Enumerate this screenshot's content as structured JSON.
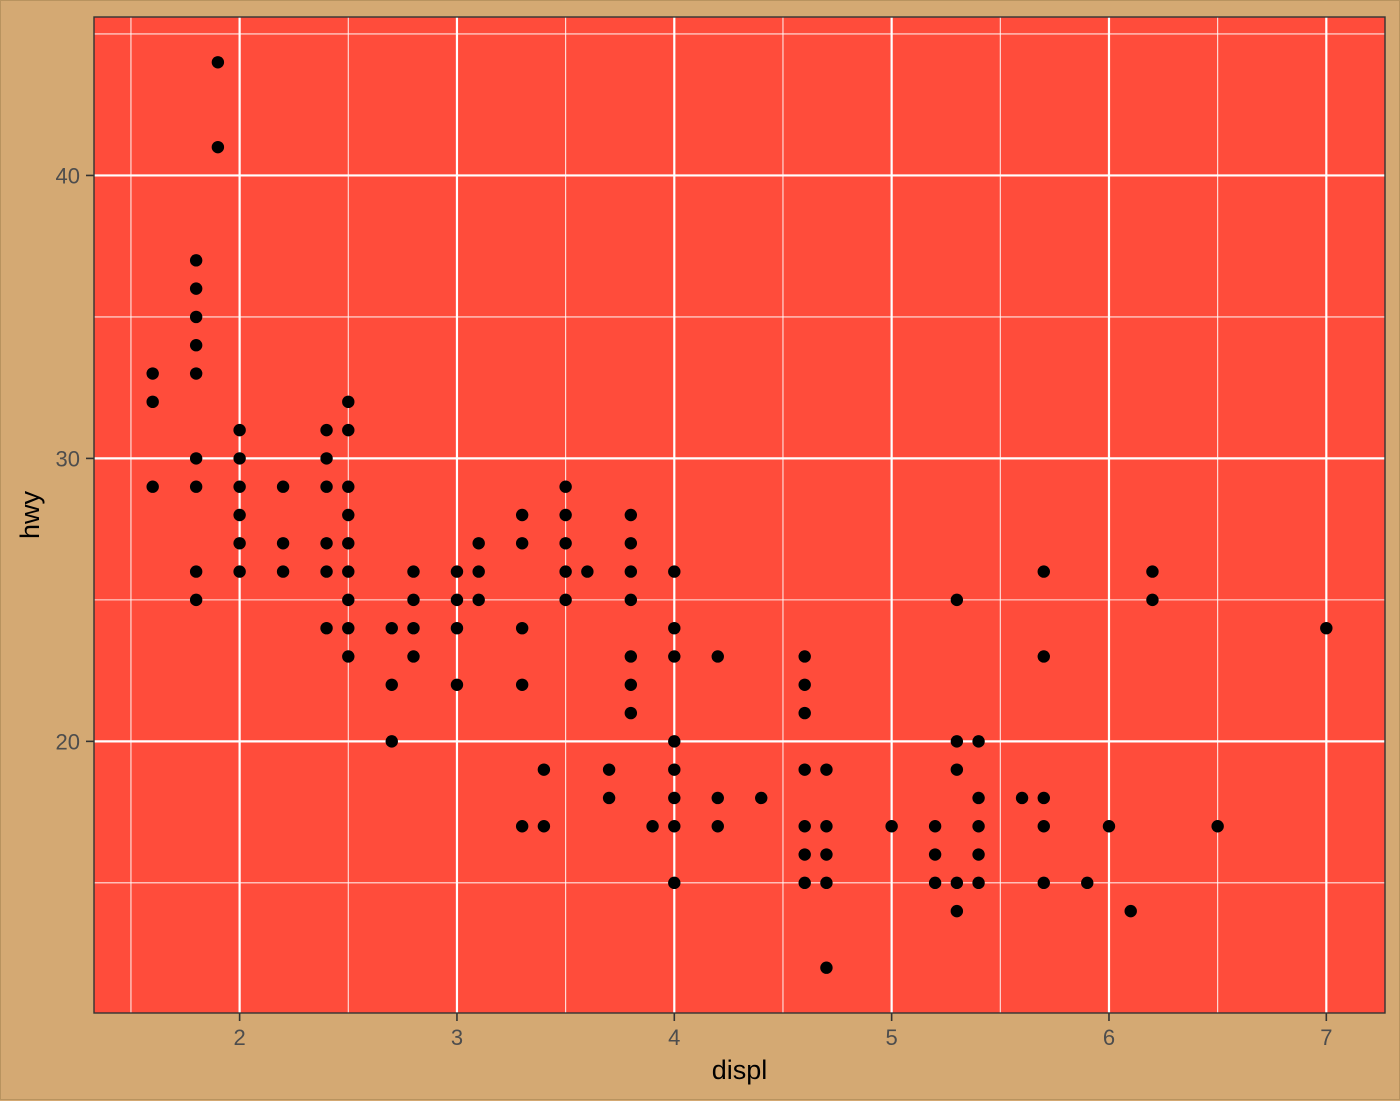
{
  "chart_data": {
    "type": "scatter",
    "title": "",
    "xlabel": "displ",
    "ylabel": "hwy",
    "xlim": [
      1.33,
      7.27
    ],
    "ylim": [
      10.4,
      45.6
    ],
    "x_ticks": [
      2,
      3,
      4,
      5,
      6,
      7
    ],
    "y_ticks": [
      20,
      30,
      40
    ],
    "x_tick_labels": [
      "2",
      "3",
      "4",
      "5",
      "6",
      "7"
    ],
    "y_tick_labels": [
      "20",
      "30",
      "40"
    ],
    "grid": true,
    "colors": {
      "background": "#d4a973",
      "panel": "#ff4c3b",
      "grid_major": "#ffffff",
      "grid_minor": "#ffffff",
      "point": "#000000",
      "tick_text": "#4d4d4d",
      "axis_title": "#000000"
    },
    "points": [
      [
        1.6,
        33
      ],
      [
        1.6,
        32
      ],
      [
        1.6,
        29
      ],
      [
        1.8,
        37
      ],
      [
        1.8,
        36
      ],
      [
        1.8,
        35
      ],
      [
        1.8,
        34
      ],
      [
        1.8,
        33
      ],
      [
        1.8,
        30
      ],
      [
        1.8,
        29
      ],
      [
        1.8,
        26
      ],
      [
        1.8,
        25
      ],
      [
        1.9,
        44
      ],
      [
        1.9,
        41
      ],
      [
        2.0,
        31
      ],
      [
        2.0,
        30
      ],
      [
        2.0,
        29
      ],
      [
        2.0,
        28
      ],
      [
        2.0,
        27
      ],
      [
        2.0,
        26
      ],
      [
        2.2,
        29
      ],
      [
        2.2,
        27
      ],
      [
        2.2,
        26
      ],
      [
        2.4,
        31
      ],
      [
        2.4,
        30
      ],
      [
        2.4,
        29
      ],
      [
        2.4,
        27
      ],
      [
        2.4,
        26
      ],
      [
        2.4,
        24
      ],
      [
        2.5,
        32
      ],
      [
        2.5,
        31
      ],
      [
        2.5,
        29
      ],
      [
        2.5,
        28
      ],
      [
        2.5,
        27
      ],
      [
        2.5,
        26
      ],
      [
        2.5,
        25
      ],
      [
        2.5,
        24
      ],
      [
        2.5,
        23
      ],
      [
        2.7,
        24
      ],
      [
        2.7,
        22
      ],
      [
        2.7,
        20
      ],
      [
        2.8,
        26
      ],
      [
        2.8,
        25
      ],
      [
        2.8,
        24
      ],
      [
        2.8,
        23
      ],
      [
        3.0,
        26
      ],
      [
        3.0,
        25
      ],
      [
        3.0,
        24
      ],
      [
        3.0,
        22
      ],
      [
        3.1,
        27
      ],
      [
        3.1,
        26
      ],
      [
        3.1,
        25
      ],
      [
        3.3,
        28
      ],
      [
        3.3,
        27
      ],
      [
        3.3,
        24
      ],
      [
        3.3,
        22
      ],
      [
        3.3,
        17
      ],
      [
        3.4,
        19
      ],
      [
        3.4,
        17
      ],
      [
        3.5,
        29
      ],
      [
        3.5,
        28
      ],
      [
        3.5,
        27
      ],
      [
        3.5,
        26
      ],
      [
        3.5,
        25
      ],
      [
        3.6,
        26
      ],
      [
        3.7,
        19
      ],
      [
        3.7,
        18
      ],
      [
        3.8,
        28
      ],
      [
        3.8,
        27
      ],
      [
        3.8,
        26
      ],
      [
        3.8,
        25
      ],
      [
        3.8,
        23
      ],
      [
        3.8,
        22
      ],
      [
        3.8,
        21
      ],
      [
        3.9,
        17
      ],
      [
        4.0,
        26
      ],
      [
        4.0,
        24
      ],
      [
        4.0,
        23
      ],
      [
        4.0,
        20
      ],
      [
        4.0,
        19
      ],
      [
        4.0,
        18
      ],
      [
        4.0,
        17
      ],
      [
        4.0,
        15
      ],
      [
        4.2,
        23
      ],
      [
        4.2,
        18
      ],
      [
        4.2,
        17
      ],
      [
        4.4,
        18
      ],
      [
        4.6,
        23
      ],
      [
        4.6,
        22
      ],
      [
        4.6,
        21
      ],
      [
        4.6,
        19
      ],
      [
        4.6,
        17
      ],
      [
        4.6,
        16
      ],
      [
        4.6,
        15
      ],
      [
        4.7,
        19
      ],
      [
        4.7,
        17
      ],
      [
        4.7,
        16
      ],
      [
        4.7,
        15
      ],
      [
        4.7,
        12
      ],
      [
        5.0,
        17
      ],
      [
        5.2,
        17
      ],
      [
        5.2,
        16
      ],
      [
        5.2,
        15
      ],
      [
        5.3,
        25
      ],
      [
        5.3,
        20
      ],
      [
        5.3,
        19
      ],
      [
        5.3,
        15
      ],
      [
        5.3,
        14
      ],
      [
        5.4,
        20
      ],
      [
        5.4,
        18
      ],
      [
        5.4,
        17
      ],
      [
        5.4,
        16
      ],
      [
        5.4,
        15
      ],
      [
        5.6,
        18
      ],
      [
        5.7,
        26
      ],
      [
        5.7,
        23
      ],
      [
        5.7,
        18
      ],
      [
        5.7,
        17
      ],
      [
        5.7,
        15
      ],
      [
        5.9,
        15
      ],
      [
        6.0,
        17
      ],
      [
        6.1,
        14
      ],
      [
        6.2,
        26
      ],
      [
        6.2,
        25
      ],
      [
        6.5,
        17
      ],
      [
        7.0,
        24
      ]
    ]
  }
}
